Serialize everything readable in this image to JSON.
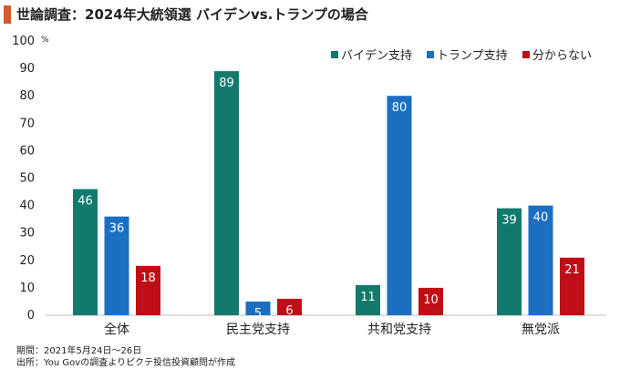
{
  "title": "世論調査：2024年大統領選 バイデンvs.トランプの場合",
  "footnotes": {
    "period": "期間：2021年5月24日～26日",
    "source": "出所：You Govの調査よりピクテ投信投資顧問が作成"
  },
  "chart_data": {
    "type": "bar",
    "unit": "%",
    "categories": [
      "全体",
      "民主党支持",
      "共和党支持",
      "無党派"
    ],
    "series": [
      {
        "name": "バイデン支持",
        "values": [
          46,
          89,
          11,
          39
        ],
        "color": "#127a6c"
      },
      {
        "name": "トランプ支持",
        "values": [
          36,
          5,
          80,
          40
        ],
        "color": "#1c6fc0"
      },
      {
        "name": "分からない",
        "values": [
          18,
          6,
          10,
          21
        ],
        "color": "#c00e16"
      }
    ],
    "ylim": [
      0,
      100
    ],
    "yticks": [
      0,
      10,
      20,
      30,
      40,
      50,
      60,
      70,
      80,
      90,
      100
    ],
    "grid": false,
    "legend": "top-right"
  }
}
